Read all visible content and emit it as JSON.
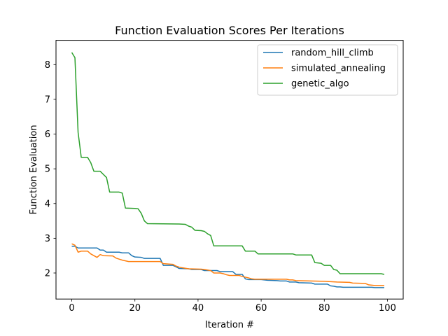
{
  "chart_data": {
    "type": "line",
    "title": "Function Evaluation Scores Per Iterations",
    "xlabel": "Iteration #",
    "ylabel": "Function Evaluation",
    "xlim": [
      -5,
      105
    ],
    "ylim": [
      1.25,
      8.7
    ],
    "xticks": [
      0,
      20,
      40,
      60,
      80,
      100
    ],
    "yticks": [
      2,
      3,
      4,
      5,
      6,
      7,
      8
    ],
    "grid": false,
    "legend_position": "top-right",
    "series": [
      {
        "name": "random_hill_climb",
        "color": "#1f77b4",
        "points": [
          [
            0,
            2.77
          ],
          [
            1,
            2.77
          ],
          [
            2,
            2.72
          ],
          [
            8,
            2.72
          ],
          [
            9,
            2.66
          ],
          [
            10,
            2.66
          ],
          [
            11,
            2.6
          ],
          [
            15,
            2.6
          ],
          [
            16,
            2.58
          ],
          [
            18,
            2.58
          ],
          [
            19,
            2.5
          ],
          [
            20,
            2.46
          ],
          [
            22,
            2.45
          ],
          [
            23,
            2.42
          ],
          [
            28,
            2.42
          ],
          [
            29,
            2.22
          ],
          [
            32,
            2.22
          ],
          [
            33,
            2.18
          ],
          [
            34,
            2.13
          ],
          [
            37,
            2.12
          ],
          [
            38,
            2.1
          ],
          [
            41,
            2.1
          ],
          [
            42,
            2.07
          ],
          [
            46,
            2.07
          ],
          [
            47,
            2.04
          ],
          [
            51,
            2.04
          ],
          [
            52,
            1.96
          ],
          [
            54,
            1.96
          ],
          [
            55,
            1.83
          ],
          [
            56,
            1.81
          ],
          [
            60,
            1.81
          ],
          [
            61,
            1.8
          ],
          [
            62,
            1.79
          ],
          [
            65,
            1.78
          ],
          [
            66,
            1.77
          ],
          [
            68,
            1.77
          ],
          [
            69,
            1.74
          ],
          [
            71,
            1.74
          ],
          [
            72,
            1.72
          ],
          [
            76,
            1.71
          ],
          [
            77,
            1.68
          ],
          [
            81,
            1.68
          ],
          [
            82,
            1.63
          ],
          [
            83,
            1.62
          ],
          [
            84,
            1.6
          ],
          [
            85,
            1.6
          ],
          [
            86,
            1.59
          ],
          [
            95,
            1.59
          ],
          [
            96,
            1.58
          ],
          [
            99,
            1.58
          ]
        ]
      },
      {
        "name": "simulated_annealing",
        "color": "#ff7f0e",
        "points": [
          [
            0,
            2.84
          ],
          [
            1,
            2.8
          ],
          [
            2,
            2.6
          ],
          [
            3,
            2.63
          ],
          [
            5,
            2.63
          ],
          [
            6,
            2.55
          ],
          [
            7,
            2.5
          ],
          [
            8,
            2.45
          ],
          [
            9,
            2.53
          ],
          [
            10,
            2.5
          ],
          [
            13,
            2.49
          ],
          [
            14,
            2.43
          ],
          [
            15,
            2.4
          ],
          [
            16,
            2.37
          ],
          [
            17,
            2.35
          ],
          [
            18,
            2.33
          ],
          [
            28,
            2.33
          ],
          [
            29,
            2.27
          ],
          [
            32,
            2.25
          ],
          [
            33,
            2.2
          ],
          [
            34,
            2.17
          ],
          [
            35,
            2.15
          ],
          [
            37,
            2.12
          ],
          [
            41,
            2.11
          ],
          [
            42,
            2.1
          ],
          [
            44,
            2.07
          ],
          [
            45,
            2.0
          ],
          [
            47,
            2.0
          ],
          [
            48,
            1.98
          ],
          [
            49,
            1.95
          ],
          [
            50,
            1.93
          ],
          [
            53,
            1.93
          ],
          [
            54,
            1.9
          ],
          [
            56,
            1.86
          ],
          [
            57,
            1.83
          ],
          [
            58,
            1.82
          ],
          [
            68,
            1.82
          ],
          [
            69,
            1.8
          ],
          [
            70,
            1.8
          ],
          [
            71,
            1.78
          ],
          [
            80,
            1.76
          ],
          [
            84,
            1.74
          ],
          [
            88,
            1.73
          ],
          [
            89,
            1.71
          ],
          [
            93,
            1.7
          ],
          [
            94,
            1.66
          ],
          [
            96,
            1.64
          ],
          [
            99,
            1.64
          ]
        ]
      },
      {
        "name": "genetic_algo",
        "color": "#2ca02c",
        "points": [
          [
            0,
            8.35
          ],
          [
            1,
            8.2
          ],
          [
            2,
            6.05
          ],
          [
            3,
            5.33
          ],
          [
            5,
            5.33
          ],
          [
            6,
            5.18
          ],
          [
            7,
            4.93
          ],
          [
            9,
            4.93
          ],
          [
            10,
            4.84
          ],
          [
            11,
            4.75
          ],
          [
            12,
            4.33
          ],
          [
            15,
            4.33
          ],
          [
            16,
            4.3
          ],
          [
            17,
            3.87
          ],
          [
            20,
            3.86
          ],
          [
            21,
            3.85
          ],
          [
            22,
            3.72
          ],
          [
            23,
            3.5
          ],
          [
            24,
            3.42
          ],
          [
            34,
            3.41
          ],
          [
            36,
            3.4
          ],
          [
            37,
            3.35
          ],
          [
            38,
            3.32
          ],
          [
            39,
            3.23
          ],
          [
            41,
            3.22
          ],
          [
            42,
            3.2
          ],
          [
            43,
            3.13
          ],
          [
            44,
            3.08
          ],
          [
            45,
            2.78
          ],
          [
            54,
            2.78
          ],
          [
            55,
            2.63
          ],
          [
            58,
            2.63
          ],
          [
            59,
            2.55
          ],
          [
            70,
            2.55
          ],
          [
            71,
            2.52
          ],
          [
            76,
            2.52
          ],
          [
            77,
            2.3
          ],
          [
            79,
            2.28
          ],
          [
            80,
            2.22
          ],
          [
            82,
            2.22
          ],
          [
            83,
            2.1
          ],
          [
            84,
            2.08
          ],
          [
            85,
            1.98
          ],
          [
            98,
            1.98
          ],
          [
            99,
            1.96
          ]
        ]
      }
    ]
  }
}
